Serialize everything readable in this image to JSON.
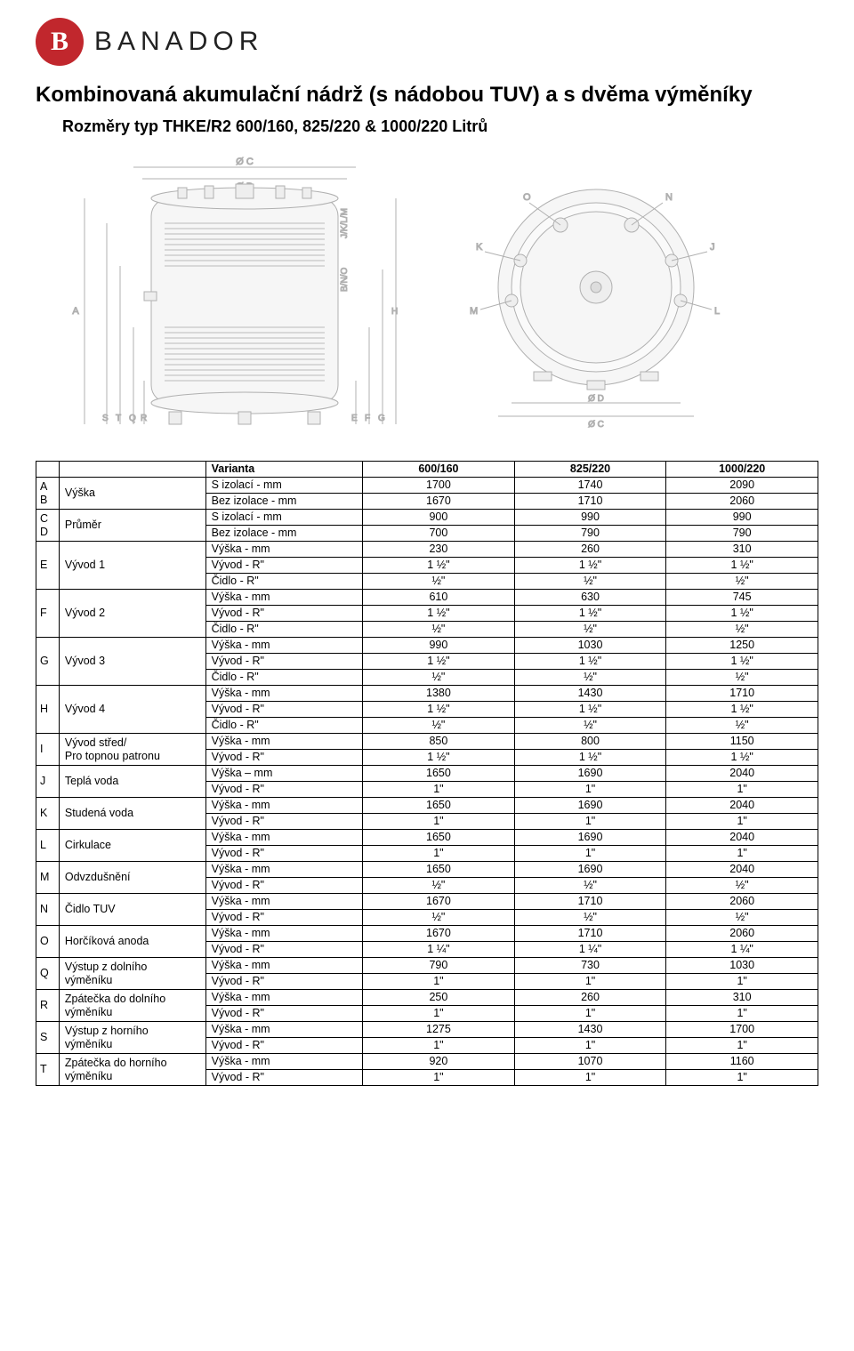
{
  "logo": {
    "mark_letter": "B",
    "brand": "BANADOR"
  },
  "title": "Kombinovaná akumulační nádrž (s nádobou TUV) a s dvěma výměníky",
  "subtitle": "Rozměry typ THKE/R2 600/160, 825/220 & 1000/220 Litrů",
  "diagram_labels": {
    "top1": "Ø C",
    "top2": "Ø D",
    "left": "A",
    "leftS": "S",
    "leftT": "T",
    "leftQ": "Q",
    "leftR": "R",
    "right": "H",
    "rightG": "G",
    "rightF": "F",
    "rightE": "E",
    "midtop": "J/K/L/M",
    "midbot": "B/N/O",
    "circle": [
      "O",
      "N",
      "K",
      "J",
      "M",
      "L"
    ],
    "circle_bottom": [
      "Ø D",
      "Ø C"
    ]
  },
  "header": {
    "varianta": "Varianta",
    "c1": "600/160",
    "c2": "825/220",
    "c3": "1000/220"
  },
  "rows": [
    {
      "letter": "A",
      "group": "Výška",
      "param": "S izolací - mm",
      "v": [
        "1700",
        "1740",
        "2090"
      ]
    },
    {
      "letter": "B",
      "group": "",
      "param": "Bez izolace - mm",
      "v": [
        "1670",
        "1710",
        "2060"
      ]
    },
    {
      "letter": "C",
      "group": "Průměr",
      "param": "S izolací - mm",
      "v": [
        "900",
        "990",
        "990"
      ]
    },
    {
      "letter": "D",
      "group": "",
      "param": "Bez izolace - mm",
      "v": [
        "700",
        "790",
        "790"
      ]
    },
    {
      "letter": "E",
      "group": "Vývod 1",
      "param": "Výška - mm",
      "v": [
        "230",
        "260",
        "310"
      ]
    },
    {
      "letter": "",
      "group": "",
      "param": "Vývod - R\"",
      "v": [
        "1 ½\"",
        "1 ½\"",
        "1 ½\""
      ]
    },
    {
      "letter": "",
      "group": "",
      "param": "Čidlo - R\"",
      "v": [
        "½\"",
        "½\"",
        "½\""
      ]
    },
    {
      "letter": "F",
      "group": "Vývod 2",
      "param": "Výška - mm",
      "v": [
        "610",
        "630",
        "745"
      ]
    },
    {
      "letter": "",
      "group": "",
      "param": "Vývod - R\"",
      "v": [
        "1 ½\"",
        "1 ½\"",
        "1 ½\""
      ]
    },
    {
      "letter": "",
      "group": "",
      "param": "Čidlo - R\"",
      "v": [
        "½\"",
        "½\"",
        "½\""
      ]
    },
    {
      "letter": "G",
      "group": "Vývod 3",
      "param": "Výška - mm",
      "v": [
        "990",
        "1030",
        "1250"
      ]
    },
    {
      "letter": "",
      "group": "",
      "param": "Vývod - R\"",
      "v": [
        "1 ½\"",
        "1 ½\"",
        "1 ½\""
      ]
    },
    {
      "letter": "",
      "group": "",
      "param": "Čidlo - R\"",
      "v": [
        "½\"",
        "½\"",
        "½\""
      ]
    },
    {
      "letter": "H",
      "group": "Vývod 4",
      "param": "Výška - mm",
      "v": [
        "1380",
        "1430",
        "1710"
      ]
    },
    {
      "letter": "",
      "group": "",
      "param": "Vývod - R\"",
      "v": [
        "1 ½\"",
        "1 ½\"",
        "1 ½\""
      ]
    },
    {
      "letter": "",
      "group": "",
      "param": "Čidlo - R\"",
      "v": [
        "½\"",
        "½\"",
        "½\""
      ]
    },
    {
      "letter": "I",
      "group": "Vývod střed/",
      "param": "Výška - mm",
      "v": [
        "850",
        "800",
        "1150"
      ]
    },
    {
      "letter": "",
      "group": "Pro topnou patronu",
      "param": "Vývod - R\"",
      "v": [
        "1 ½\"",
        "1 ½\"",
        "1 ½\""
      ]
    },
    {
      "letter": "J",
      "group": "Teplá voda",
      "param": "Výška – mm",
      "v": [
        "1650",
        "1690",
        "2040"
      ]
    },
    {
      "letter": "",
      "group": "",
      "param": "Vývod - R\"",
      "v": [
        "1\"",
        "1\"",
        "1\""
      ]
    },
    {
      "letter": "K",
      "group": "Studená voda",
      "param": "Výška - mm",
      "v": [
        "1650",
        "1690",
        "2040"
      ]
    },
    {
      "letter": "",
      "group": "",
      "param": "Vývod - R\"",
      "v": [
        "1\"",
        "1\"",
        "1\""
      ]
    },
    {
      "letter": "L",
      "group": "Cirkulace",
      "param": "Výška - mm",
      "v": [
        "1650",
        "1690",
        "2040"
      ]
    },
    {
      "letter": "",
      "group": "",
      "param": "Vývod - R\"",
      "v": [
        "1\"",
        "1\"",
        "1\""
      ]
    },
    {
      "letter": "M",
      "group": "Odvzdušnění",
      "param": "Výška - mm",
      "v": [
        "1650",
        "1690",
        "2040"
      ]
    },
    {
      "letter": "",
      "group": "",
      "param": "Vývod - R\"",
      "v": [
        "½\"",
        "½\"",
        "½\""
      ]
    },
    {
      "letter": "N",
      "group": "Čidlo TUV",
      "param": "Výška - mm",
      "v": [
        "1670",
        "1710",
        "2060"
      ]
    },
    {
      "letter": "",
      "group": "",
      "param": "Vývod - R\"",
      "v": [
        "½\"",
        "½\"",
        "½\""
      ]
    },
    {
      "letter": "O",
      "group": "Horčíková anoda",
      "param": "Výška - mm",
      "v": [
        "1670",
        "1710",
        "2060"
      ]
    },
    {
      "letter": "",
      "group": "",
      "param": "Vývod - R\"",
      "v": [
        "1 ¼\"",
        "1 ¼\"",
        "1 ¼\""
      ]
    },
    {
      "letter": "Q",
      "group": "Výstup z dolního",
      "param": "Výška - mm",
      "v": [
        "790",
        "730",
        "1030"
      ]
    },
    {
      "letter": "",
      "group": "výměníku",
      "param": "Vývod - R\"",
      "v": [
        "1\"",
        "1\"",
        "1\""
      ]
    },
    {
      "letter": "R",
      "group": "Zpátečka do dolního",
      "param": "Výška - mm",
      "v": [
        "250",
        "260",
        "310"
      ]
    },
    {
      "letter": "",
      "group": "výměníku",
      "param": "Vývod - R\"",
      "v": [
        "1\"",
        "1\"",
        "1\""
      ]
    },
    {
      "letter": "S",
      "group": "Výstup z horního",
      "param": "Výška - mm",
      "v": [
        "1275",
        "1430",
        "1700"
      ]
    },
    {
      "letter": "",
      "group": "výměníku",
      "param": "Vývod - R\"",
      "v": [
        "1\"",
        "1\"",
        "1\""
      ]
    },
    {
      "letter": "T",
      "group": "Zpátečka do horního",
      "param": "Výška - mm",
      "v": [
        "920",
        "1070",
        "1160"
      ]
    },
    {
      "letter": "",
      "group": "výměníku",
      "param": "Vývod - R\"",
      "v": [
        "1\"",
        "1\"",
        "1\""
      ]
    }
  ],
  "row_groups": [
    {
      "span": 2
    },
    {
      "span": 2
    },
    {
      "span": 3
    },
    {
      "span": 3
    },
    {
      "span": 3
    },
    {
      "span": 3
    },
    {
      "span": 2
    },
    {
      "span": 2
    },
    {
      "span": 2
    },
    {
      "span": 2
    },
    {
      "span": 2
    },
    {
      "span": 2
    },
    {
      "span": 2
    },
    {
      "span": 2
    },
    {
      "span": 2
    },
    {
      "span": 2
    },
    {
      "span": 2
    }
  ],
  "colors": {
    "brand_red": "#c1272d",
    "diagram_stroke": "#b0b0b0",
    "diagram_fill": "#f3f3f3",
    "text": "#000000"
  }
}
